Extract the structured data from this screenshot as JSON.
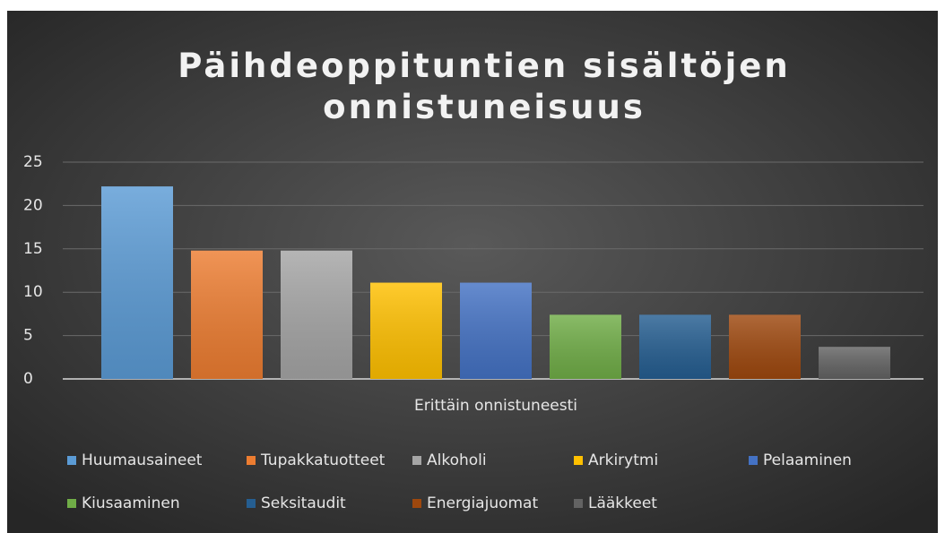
{
  "chart_data": {
    "type": "bar",
    "title": "Päihdeoppituntien sisältöjen onnistuneisuus",
    "categories": [
      "Erittäin onnistuneesti"
    ],
    "series": [
      {
        "name": "Huumausaineet",
        "color": "#5b9bd5",
        "values": [
          22.2
        ]
      },
      {
        "name": "Tupakkatuotteet",
        "color": "#ed7d31",
        "values": [
          14.8
        ]
      },
      {
        "name": "Alkoholi",
        "color": "#a5a5a5",
        "values": [
          14.8
        ]
      },
      {
        "name": "Arkirytmi",
        "color": "#ffc000",
        "values": [
          11.1
        ]
      },
      {
        "name": "Pelaaminen",
        "color": "#4472c4",
        "values": [
          11.1
        ]
      },
      {
        "name": "Kiusaaminen",
        "color": "#70ad47",
        "values": [
          7.4
        ]
      },
      {
        "name": "Seksitaudit",
        "color": "#255e91",
        "values": [
          7.4
        ]
      },
      {
        "name": "Energiajuomat",
        "color": "#9e480e",
        "values": [
          7.4
        ]
      },
      {
        "name": "Lääkkeet",
        "color": "#636363",
        "values": [
          3.7
        ]
      }
    ],
    "ylim": [
      0,
      25
    ],
    "yticks": [
      0,
      5,
      10,
      15,
      20,
      25
    ],
    "grid": true,
    "legend": "bottom"
  }
}
